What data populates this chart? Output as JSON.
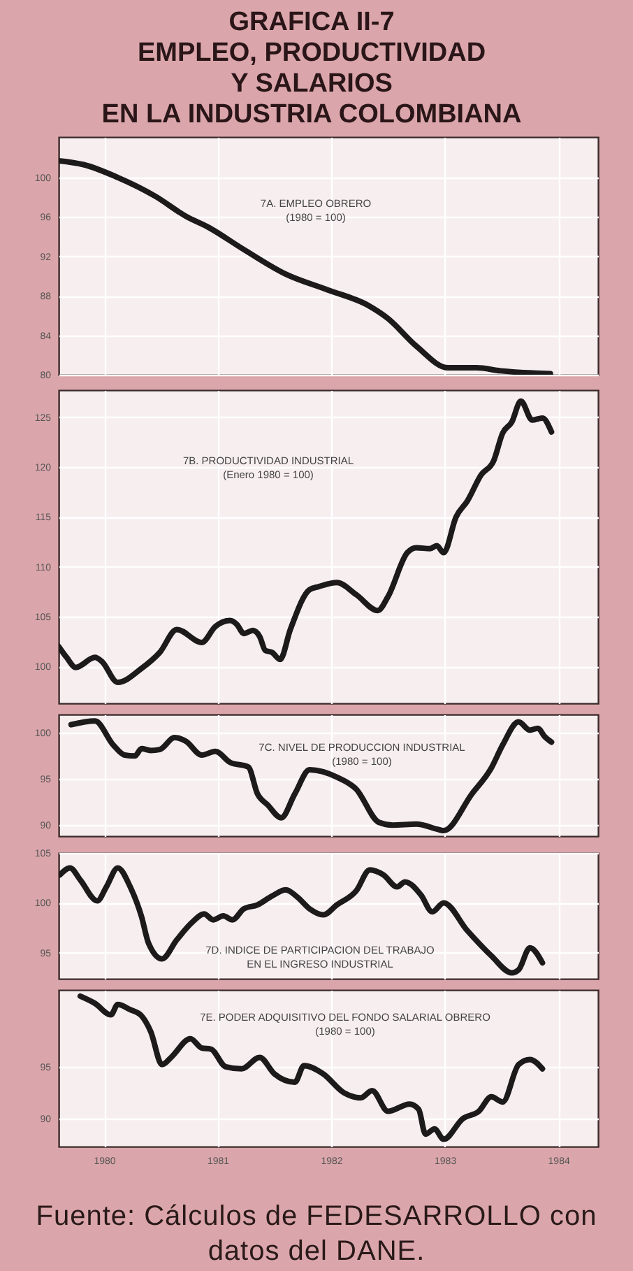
{
  "chart_data": [
    {
      "type": "line",
      "title": "GRAFICA II-7\nEMPLEO, PRODUCTIVIDAD\nY SALARIOS\nEN LA INDUSTRIA COLOMBIANA",
      "subtitle": "7A. EMPLEO OBRERO\n(1980 = 100)",
      "tick_labels": "y",
      "grid": true,
      "xlim": [
        1979.6,
        1984.35
      ],
      "xticks": [
        1980,
        1981,
        1982,
        1983,
        1984
      ],
      "ylim": [
        80,
        104.1
      ],
      "yticks": [
        80,
        84,
        88,
        92,
        96,
        100
      ],
      "x": [
        1979.6,
        1979.82,
        1980.12,
        1980.45,
        1980.73,
        1980.91,
        1981.23,
        1981.6,
        1981.97,
        1982.33,
        1982.5,
        1982.75,
        1983.03,
        1983.28,
        1983.49,
        1983.93
      ],
      "series": [
        {
          "color": "#1c1a1a",
          "values": [
            101.7,
            101.3,
            100,
            98.1,
            96,
            95,
            92.7,
            90.2,
            88.6,
            87,
            85.7,
            82.9,
            80.7,
            80.7,
            80.4,
            80.1
          ]
        }
      ]
    },
    {
      "type": "line",
      "title": "7B. PRODUCTIVIDAD INDUSTRIAL\n(Enero 1980 = 100)",
      "tick_labels": "y",
      "grid": true,
      "xlim": [
        1979.6,
        1984.35
      ],
      "xticks": [
        1980,
        1981,
        1982,
        1983,
        1984
      ],
      "ylim": [
        96.3,
        127.7
      ],
      "yticks": [
        100,
        105,
        110,
        115,
        120,
        125
      ],
      "x": [
        1979.6,
        1979.67,
        1979.75,
        1979.92,
        1979.98,
        1980.12,
        1980.33,
        1980.49,
        1980.64,
        1980.86,
        1980.98,
        1981.11,
        1981.17,
        1981.23,
        1981.31,
        1981.37,
        1981.42,
        1981.48,
        1981.55,
        1981.64,
        1981.81,
        1981.89,
        1982.05,
        1982.22,
        1982.41,
        1982.5,
        1982.67,
        1982.75,
        1982.87,
        1982.93,
        1982.99,
        1983.1,
        1983.2,
        1983.32,
        1983.43,
        1983.51,
        1983.59,
        1983.67,
        1983.77,
        1983.86,
        1983.94
      ],
      "series": [
        {
          "color": "#1c1a1a",
          "values": [
            102,
            100.9,
            99.9,
            100.9,
            100.5,
            98.4,
            99.8,
            101.4,
            103.7,
            102.4,
            104,
            104.6,
            104.2,
            103.3,
            103.6,
            103,
            101.6,
            101.4,
            100.7,
            103.7,
            107.7,
            108,
            108.4,
            107.2,
            105.6,
            107,
            111.4,
            111.9,
            111.8,
            112.1,
            111.4,
            115,
            116.6,
            119.2,
            120.6,
            123.4,
            124.5,
            126.6,
            124.7,
            124.9,
            123.5
          ]
        }
      ]
    },
    {
      "type": "line",
      "title": "7C. NIVEL DE PRODUCCION INDUSTRIAL\n(1980 = 100)",
      "tick_labels": "y",
      "grid": true,
      "xlim": [
        1979.6,
        1984.35
      ],
      "xticks": [
        1980,
        1981,
        1982,
        1983,
        1984
      ],
      "ylim": [
        88.8,
        102
      ],
      "yticks": [
        90,
        95,
        100
      ],
      "x": [
        1979.71,
        1979.92,
        1980.08,
        1980.18,
        1980.27,
        1980.33,
        1980.41,
        1980.49,
        1980.62,
        1980.72,
        1980.86,
        1980.98,
        1981.11,
        1981.27,
        1981.35,
        1981.44,
        1981.56,
        1981.68,
        1981.81,
        1982.05,
        1982.22,
        1982.42,
        1982.54,
        1982.75,
        1982.95,
        1982.99,
        1983.24,
        1983.41,
        1983.51,
        1983.65,
        1983.75,
        1983.82,
        1983.88,
        1983.94
      ],
      "series": [
        {
          "color": "#1c1a1a",
          "values": [
            100.9,
            101.3,
            98.7,
            97.6,
            97.5,
            98.3,
            98.1,
            98.2,
            99.5,
            99.1,
            97.6,
            98,
            96.8,
            96.3,
            93.4,
            92.2,
            90.8,
            93.4,
            96,
            95.2,
            93.9,
            90.3,
            90,
            90.1,
            89.5,
            89.4,
            93.4,
            96.2,
            98.7,
            101.2,
            100.3,
            100.5,
            99.6,
            99
          ]
        }
      ]
    },
    {
      "type": "line",
      "title": "7D. INDICE DE PARTICIPACION DEL TRABAJO\nEN EL INGRESO INDUSTRIAL",
      "tick_labels": "y",
      "grid": true,
      "xlim": [
        1979.6,
        1984.35
      ],
      "xticks": [
        1980,
        1981,
        1982,
        1983,
        1984
      ],
      "ylim": [
        92.4,
        105
      ],
      "yticks": [
        95,
        100,
        105
      ],
      "x": [
        1979.61,
        1979.7,
        1979.79,
        1979.94,
        1980.02,
        1980.12,
        1980.23,
        1980.33,
        1980.39,
        1980.51,
        1980.64,
        1980.78,
        1980.88,
        1980.96,
        1981.05,
        1981.13,
        1981.23,
        1981.35,
        1981.48,
        1981.6,
        1981.7,
        1981.81,
        1981.93,
        1982.05,
        1982.22,
        1982.34,
        1982.46,
        1982.58,
        1982.65,
        1982.79,
        1982.89,
        1982.99,
        1983.2,
        1983.41,
        1983.59,
        1983.65,
        1983.75,
        1983.86
      ],
      "series": [
        {
          "color": "#1c1a1a",
          "values": [
            102.8,
            103.5,
            102.3,
            100.2,
            101.6,
            103.5,
            101.6,
            98.6,
            96,
            94.4,
            96.3,
            98.1,
            98.9,
            98.3,
            98.7,
            98.3,
            99.4,
            99.8,
            100.7,
            101.3,
            100.6,
            99.4,
            98.8,
            99.8,
            101.2,
            103.3,
            102.8,
            101.6,
            102.1,
            100.8,
            99.1,
            100,
            97.2,
            94.7,
            93,
            93.3,
            95.5,
            94
          ]
        }
      ]
    },
    {
      "type": "line",
      "title": "7E. PODER ADQUISITIVO DEL FONDO SALARIAL OBRERO\n(1980 = 100)",
      "grid": true,
      "xlim": [
        1979.6,
        1984.35
      ],
      "xticks": [
        1980,
        1981,
        1982,
        1983,
        1984
      ],
      "ylim": [
        87.3,
        102.4
      ],
      "yticks": [
        90,
        95
      ],
      "annotations": [
        "Fuente: Cálculos de FEDESARROLLO con datos del DANE."
      ],
      "x": [
        1979.79,
        1979.92,
        1980.06,
        1980.12,
        1980.23,
        1980.33,
        1980.41,
        1980.51,
        1980.59,
        1980.76,
        1980.86,
        1980.94,
        1981.07,
        1981.21,
        1981.37,
        1981.5,
        1981.68,
        1981.76,
        1981.93,
        1982.11,
        1982.26,
        1982.36,
        1982.5,
        1982.69,
        1982.77,
        1982.83,
        1982.91,
        1982.99,
        1983.16,
        1983.3,
        1983.41,
        1983.51,
        1983.65,
        1983.75,
        1983.86
      ],
      "series": [
        {
          "color": "#1c1a1a",
          "values": [
            101.8,
            101.1,
            100,
            101,
            100.5,
            99.9,
            98.4,
            95.2,
            95.9,
            97.7,
            96.8,
            96.7,
            95,
            94.8,
            95.9,
            94.3,
            93.5,
            95.1,
            94.3,
            92.5,
            92,
            92.7,
            90.7,
            91.4,
            90.9,
            88.5,
            89,
            88,
            90,
            90.7,
            92.1,
            91.6,
            95.2,
            95.7,
            94.8
          ]
        }
      ]
    }
  ]
}
